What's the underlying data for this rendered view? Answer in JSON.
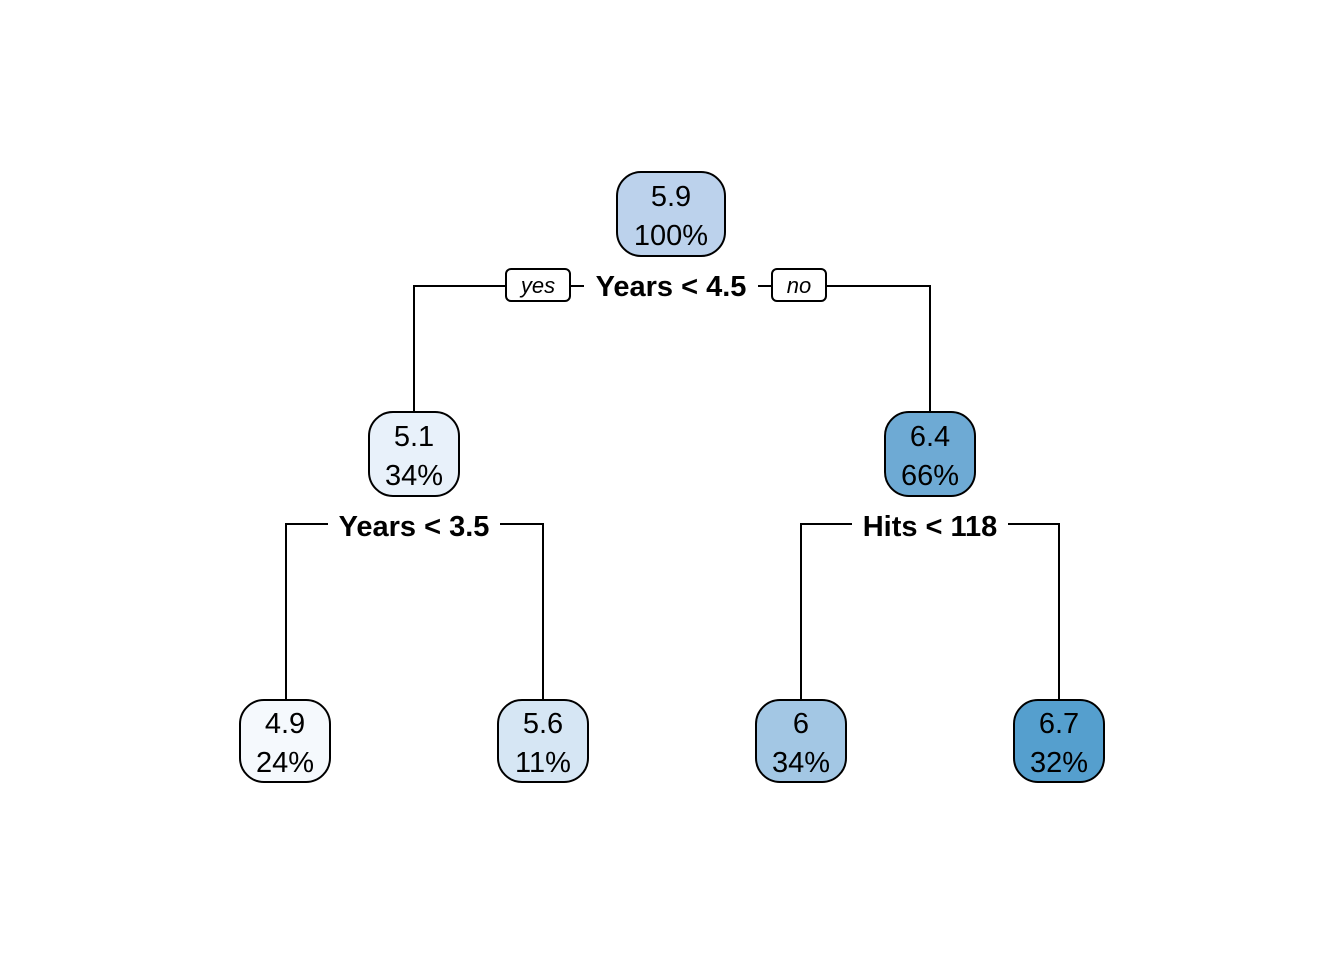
{
  "tree": {
    "nodes": [
      {
        "id": "root",
        "value": "5.9",
        "percent": "100%",
        "color": "#bcd2ec"
      },
      {
        "id": "n2",
        "value": "5.1",
        "percent": "34%",
        "color": "#e8f1fa"
      },
      {
        "id": "n3",
        "value": "6.4",
        "percent": "66%",
        "color": "#6eaad4"
      },
      {
        "id": "n4",
        "value": "4.9",
        "percent": "24%",
        "color": "#f5f9fd"
      },
      {
        "id": "n5",
        "value": "5.6",
        "percent": "11%",
        "color": "#d6e6f4"
      },
      {
        "id": "n6",
        "value": "6",
        "percent": "34%",
        "color": "#a3c7e4"
      },
      {
        "id": "n7",
        "value": "6.7",
        "percent": "32%",
        "color": "#559fce"
      }
    ],
    "splits": [
      {
        "id": "root",
        "label": "Years < 4.5"
      },
      {
        "id": "n2",
        "label": "Years < 3.5"
      },
      {
        "id": "n3",
        "label": "Hits < 118"
      }
    ],
    "branch_tags": {
      "yes": "yes",
      "no": "no"
    }
  }
}
